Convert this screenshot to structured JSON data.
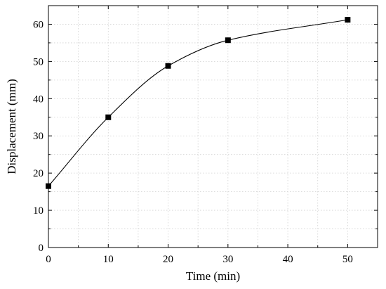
{
  "chart_data": {
    "type": "line",
    "title": "",
    "xlabel": "Time (min)",
    "ylabel": "Displacement (mm)",
    "xlim": [
      0,
      55
    ],
    "ylim": [
      0,
      65
    ],
    "xticks": [
      0,
      10,
      20,
      30,
      40,
      50
    ],
    "yticks": [
      0,
      10,
      20,
      30,
      40,
      50,
      60
    ],
    "grid": true,
    "legend": "none",
    "marker": "square",
    "line_style": "smooth",
    "colors": {
      "marker": "#000000",
      "line": "#000000",
      "grid": "#d0d0d0",
      "axis": "#000000"
    },
    "series": [
      {
        "x": [
          0,
          10,
          20,
          30,
          50
        ],
        "y": [
          16.5,
          35.0,
          48.8,
          55.7,
          61.2
        ]
      }
    ]
  }
}
